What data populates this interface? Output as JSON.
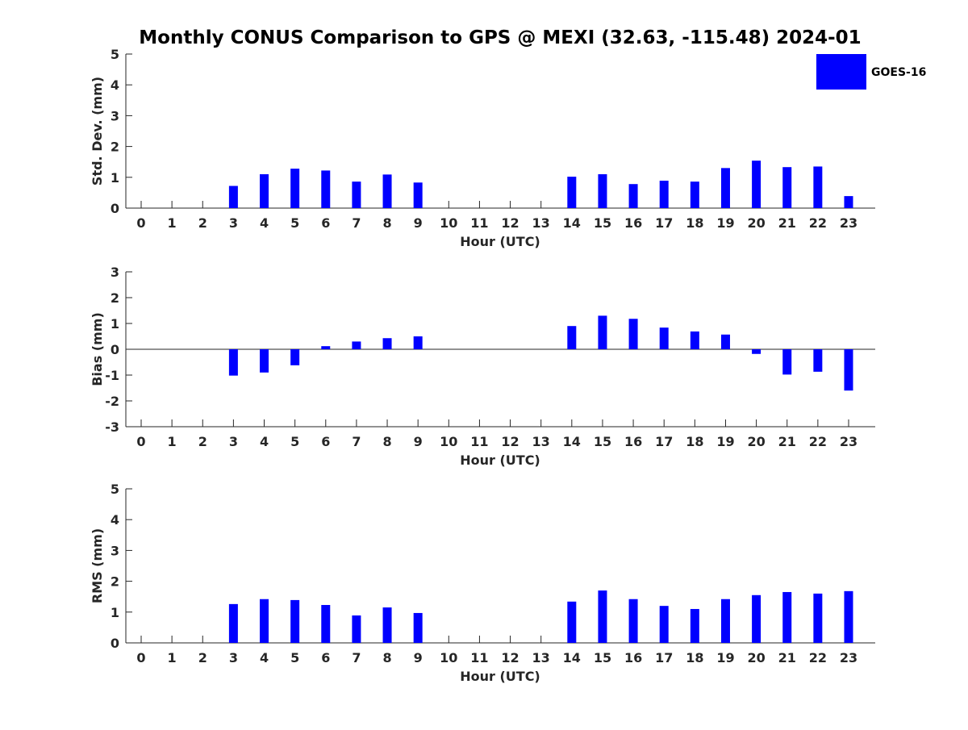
{
  "title": "Monthly CONUS Comparison to GPS @ MEXI (32.63, -115.48) 2024-01",
  "legend": {
    "label": "GOES-16",
    "color": "#0000ff"
  },
  "chart_data": [
    {
      "type": "bar",
      "name": "std-dev",
      "ylabel": "Std. Dev. (mm)",
      "xlabel": "Hour (UTC)",
      "ylim": [
        0,
        5
      ],
      "yticks": [
        0,
        1,
        2,
        3,
        4,
        5
      ],
      "categories": [
        "0",
        "1",
        "2",
        "3",
        "4",
        "5",
        "6",
        "7",
        "8",
        "9",
        "10",
        "11",
        "12",
        "13",
        "14",
        "15",
        "16",
        "17",
        "18",
        "19",
        "20",
        "21",
        "22",
        "23"
      ],
      "series": [
        {
          "name": "GOES-16",
          "values": [
            null,
            null,
            null,
            0.72,
            1.1,
            1.28,
            1.22,
            0.86,
            1.09,
            0.83,
            null,
            null,
            null,
            null,
            1.02,
            1.1,
            0.78,
            0.89,
            0.86,
            1.3,
            1.54,
            1.33,
            1.35,
            0.39
          ]
        }
      ]
    },
    {
      "type": "bar",
      "name": "bias",
      "ylabel": "Bias (mm)",
      "xlabel": "Hour (UTC)",
      "ylim": [
        -3,
        3
      ],
      "yticks": [
        -3,
        -2,
        -1,
        0,
        1,
        2,
        3
      ],
      "zero_line": true,
      "categories": [
        "0",
        "1",
        "2",
        "3",
        "4",
        "5",
        "6",
        "7",
        "8",
        "9",
        "10",
        "11",
        "12",
        "13",
        "14",
        "15",
        "16",
        "17",
        "18",
        "19",
        "20",
        "21",
        "22",
        "23"
      ],
      "series": [
        {
          "name": "GOES-16",
          "values": [
            null,
            null,
            null,
            -1.02,
            -0.9,
            -0.62,
            0.12,
            0.3,
            0.43,
            0.5,
            null,
            null,
            null,
            null,
            0.9,
            1.3,
            1.18,
            0.84,
            0.69,
            0.57,
            -0.18,
            -0.98,
            -0.87,
            -1.6
          ]
        }
      ]
    },
    {
      "type": "bar",
      "name": "rms",
      "ylabel": "RMS (mm)",
      "xlabel": "Hour (UTC)",
      "ylim": [
        0,
        5
      ],
      "yticks": [
        0,
        1,
        2,
        3,
        4,
        5
      ],
      "categories": [
        "0",
        "1",
        "2",
        "3",
        "4",
        "5",
        "6",
        "7",
        "8",
        "9",
        "10",
        "11",
        "12",
        "13",
        "14",
        "15",
        "16",
        "17",
        "18",
        "19",
        "20",
        "21",
        "22",
        "23"
      ],
      "series": [
        {
          "name": "GOES-16",
          "values": [
            null,
            null,
            null,
            1.26,
            1.42,
            1.39,
            1.23,
            0.89,
            1.15,
            0.97,
            null,
            null,
            null,
            null,
            1.34,
            1.7,
            1.42,
            1.2,
            1.1,
            1.42,
            1.55,
            1.65,
            1.6,
            1.68
          ]
        }
      ]
    }
  ]
}
